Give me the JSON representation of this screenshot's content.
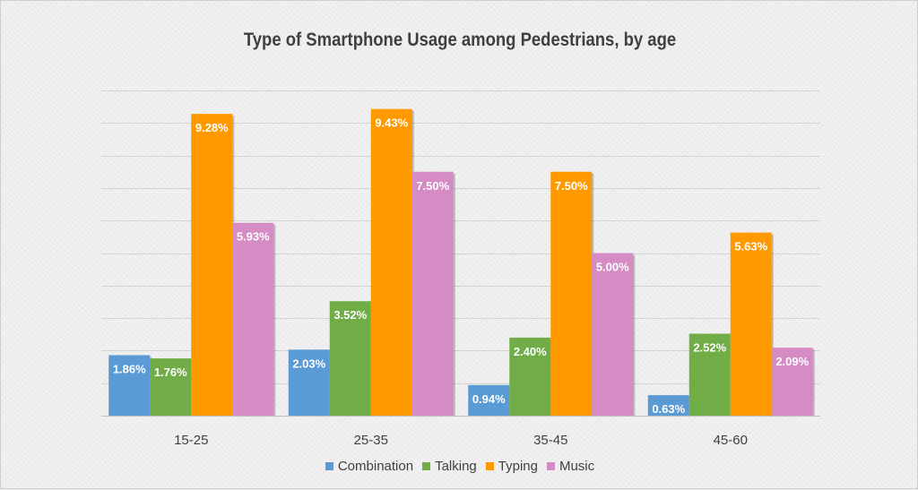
{
  "chart_data": {
    "type": "bar",
    "title": "Type of Smartphone Usage among Pedestrians, by age",
    "categories": [
      "15-25",
      "25-35",
      "35-45",
      "45-60"
    ],
    "series": [
      {
        "name": "Combination",
        "color": "#5b9bd5",
        "values": [
          1.86,
          2.03,
          0.94,
          0.63
        ],
        "labels": [
          "1.86%",
          "2.03%",
          "0.94%",
          "0.63%"
        ]
      },
      {
        "name": "Talking",
        "color": "#70ad47",
        "values": [
          1.76,
          3.52,
          2.4,
          2.52
        ],
        "labels": [
          "1.76%",
          "3.52%",
          "2.40%",
          "2.52%"
        ]
      },
      {
        "name": "Typing",
        "color": "#ff9900",
        "values": [
          9.28,
          9.43,
          7.5,
          5.63
        ],
        "labels": [
          "9.28%",
          "9.43%",
          "7.50%",
          "5.63%"
        ]
      },
      {
        "name": "Music",
        "color": "#d58bc4",
        "values": [
          5.93,
          7.5,
          5.0,
          2.09
        ],
        "labels": [
          "5.93%",
          "7.50%",
          "5.00%",
          "2.09%"
        ]
      }
    ],
    "ylim": [
      0,
      10
    ],
    "gridlines": true,
    "grid_step": 1,
    "y_tick_labels_shown": false,
    "legend_position": "bottom"
  }
}
